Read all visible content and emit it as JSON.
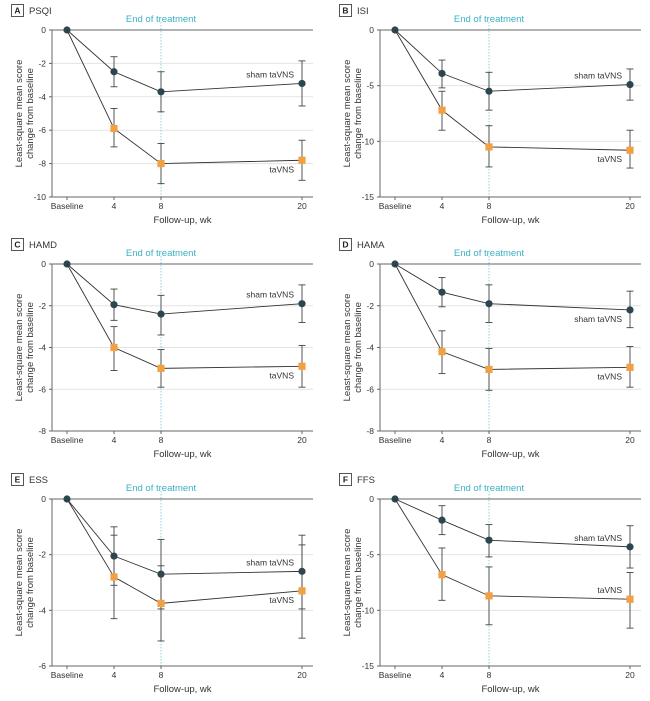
{
  "colors": {
    "sham": "#2c4650",
    "active": "#f2a142",
    "eot_line": "#6cc6d6",
    "eot_text": "#3ab0c4",
    "grid": "#e3e3e3",
    "axis": "#666666",
    "line": "#333333",
    "errorbar": "#444444"
  },
  "chart_data": [
    {
      "type": "line",
      "panel_letter": "A",
      "title": "PSQI",
      "annotation": "End of treatment",
      "annotation_x": 8,
      "xlabel": "Follow-up, wk",
      "ylabel_line1": "Least-square mean score",
      "ylabel_line2": "change from baseline",
      "x": [
        0,
        4,
        8,
        20
      ],
      "x_tick_labels": [
        "Baseline",
        "4",
        "8",
        "20"
      ],
      "xlim": [
        0,
        20
      ],
      "ylim": [
        -10,
        0
      ],
      "y_ticks": [
        0,
        -2,
        -4,
        -6,
        -8,
        -10
      ],
      "grid": true,
      "series": [
        {
          "name": "sham taVNS",
          "marker": "circle",
          "values": [
            0,
            -2.5,
            -3.7,
            -3.2
          ],
          "ci_upper": [
            0,
            -1.6,
            -2.5,
            -1.85
          ],
          "ci_lower": [
            0,
            -3.4,
            -4.9,
            -4.55
          ],
          "label_pos": "above"
        },
        {
          "name": "taVNS",
          "marker": "square",
          "values": [
            0,
            -5.9,
            -8.0,
            -7.8
          ],
          "ci_upper": [
            0,
            -4.7,
            -6.8,
            -6.6
          ],
          "ci_lower": [
            0,
            -7.0,
            -9.2,
            -9.0
          ],
          "label_pos": "below"
        }
      ]
    },
    {
      "type": "line",
      "panel_letter": "B",
      "title": "ISI",
      "annotation": "End of treatment",
      "annotation_x": 8,
      "xlabel": "Follow-up, wk",
      "ylabel_line1": "Least-square mean score",
      "ylabel_line2": "change from baseline",
      "x": [
        0,
        4,
        8,
        20
      ],
      "x_tick_labels": [
        "Baseline",
        "4",
        "8",
        "20"
      ],
      "xlim": [
        0,
        20
      ],
      "ylim": [
        -15,
        0
      ],
      "y_ticks": [
        0,
        -5,
        -10,
        -15
      ],
      "grid": true,
      "series": [
        {
          "name": "sham taVNS",
          "marker": "circle",
          "values": [
            0,
            -3.9,
            -5.5,
            -4.9
          ],
          "ci_upper": [
            0,
            -2.7,
            -3.8,
            -3.5
          ],
          "ci_lower": [
            0,
            -5.2,
            -7.2,
            -6.3
          ],
          "label_pos": "above"
        },
        {
          "name": "taVNS",
          "marker": "square",
          "values": [
            0,
            -7.2,
            -10.5,
            -10.8
          ],
          "ci_upper": [
            0,
            -5.5,
            -8.6,
            -9.0
          ],
          "ci_lower": [
            0,
            -9.0,
            -12.3,
            -12.4
          ],
          "label_pos": "below"
        }
      ]
    },
    {
      "type": "line",
      "panel_letter": "C",
      "title": "HAMD",
      "annotation": "End of treatment",
      "annotation_x": 8,
      "xlabel": "Follow-up, wk",
      "ylabel_line1": "Least-square mean score",
      "ylabel_line2": "change from baseline",
      "x": [
        0,
        4,
        8,
        20
      ],
      "x_tick_labels": [
        "Baseline",
        "4",
        "8",
        "20"
      ],
      "xlim": [
        0,
        20
      ],
      "ylim": [
        -8,
        0
      ],
      "y_ticks": [
        0,
        -2,
        -4,
        -6,
        -8
      ],
      "grid": true,
      "series": [
        {
          "name": "sham taVNS",
          "marker": "circle",
          "values": [
            0,
            -1.95,
            -2.4,
            -1.9
          ],
          "ci_upper": [
            0,
            -1.2,
            -1.5,
            -1.0
          ],
          "ci_lower": [
            0,
            -2.7,
            -3.4,
            -2.8
          ],
          "label_pos": "above"
        },
        {
          "name": "taVNS",
          "marker": "square",
          "values": [
            0,
            -4.0,
            -5.0,
            -4.9
          ],
          "ci_upper": [
            0,
            -3.0,
            -4.1,
            -3.9
          ],
          "ci_lower": [
            0,
            -5.1,
            -5.9,
            -5.9
          ],
          "label_pos": "below"
        }
      ]
    },
    {
      "type": "line",
      "panel_letter": "D",
      "title": "HAMA",
      "annotation": "End of treatment",
      "annotation_x": 8,
      "xlabel": "Follow-up, wk",
      "ylabel_line1": "Least-square mean score",
      "ylabel_line2": "change from baseline",
      "x": [
        0,
        4,
        8,
        20
      ],
      "x_tick_labels": [
        "Baseline",
        "4",
        "8",
        "20"
      ],
      "xlim": [
        0,
        20
      ],
      "ylim": [
        -8,
        0
      ],
      "y_ticks": [
        0,
        -2,
        -4,
        -6,
        -8
      ],
      "grid": true,
      "series": [
        {
          "name": "sham taVNS",
          "marker": "circle",
          "values": [
            0,
            -1.35,
            -1.9,
            -2.2
          ],
          "ci_upper": [
            0,
            -0.65,
            -1.0,
            -1.3
          ],
          "ci_lower": [
            0,
            -2.05,
            -2.8,
            -3.05
          ],
          "label_pos": "below"
        },
        {
          "name": "taVNS",
          "marker": "square",
          "values": [
            0,
            -4.2,
            -5.05,
            -4.95
          ],
          "ci_upper": [
            0,
            -3.2,
            -4.05,
            -3.95
          ],
          "ci_lower": [
            0,
            -5.25,
            -6.05,
            -5.9
          ],
          "label_pos": "below"
        }
      ]
    },
    {
      "type": "line",
      "panel_letter": "E",
      "title": "ESS",
      "annotation": "End of treatment",
      "annotation_x": 8,
      "xlabel": "Follow-up, wk",
      "ylabel_line1": "Least-square mean score",
      "ylabel_line2": "change from baseline",
      "x": [
        0,
        4,
        8,
        20
      ],
      "x_tick_labels": [
        "Baseline",
        "4",
        "8",
        "20"
      ],
      "xlim": [
        0,
        20
      ],
      "ylim": [
        -6,
        0
      ],
      "y_ticks": [
        0,
        -2,
        -4,
        -6
      ],
      "grid": true,
      "series": [
        {
          "name": "sham taVNS",
          "marker": "circle",
          "values": [
            0,
            -2.05,
            -2.7,
            -2.6
          ],
          "ci_upper": [
            0,
            -1.0,
            -1.45,
            -1.3
          ],
          "ci_lower": [
            0,
            -3.1,
            -3.95,
            -3.95
          ],
          "label_pos": "above"
        },
        {
          "name": "taVNS",
          "marker": "square",
          "values": [
            0,
            -2.8,
            -3.75,
            -3.3
          ],
          "ci_upper": [
            0,
            -1.3,
            -2.4,
            -1.65
          ],
          "ci_lower": [
            0,
            -4.3,
            -5.1,
            -5.0
          ],
          "label_pos": "below"
        }
      ]
    },
    {
      "type": "line",
      "panel_letter": "F",
      "title": "FFS",
      "annotation": "End of treatment",
      "annotation_x": 8,
      "xlabel": "Follow-up, wk",
      "ylabel_line1": "Least-square mean score",
      "ylabel_line2": "change from baseline",
      "x": [
        0,
        4,
        8,
        20
      ],
      "x_tick_labels": [
        "Baseline",
        "4",
        "8",
        "20"
      ],
      "xlim": [
        0,
        20
      ],
      "ylim": [
        -15,
        0
      ],
      "y_ticks": [
        0,
        -5,
        -10,
        -15
      ],
      "grid": true,
      "series": [
        {
          "name": "sham taVNS",
          "marker": "circle",
          "values": [
            0,
            -1.9,
            -3.7,
            -4.3
          ],
          "ci_upper": [
            0,
            -0.6,
            -2.3,
            -2.4
          ],
          "ci_lower": [
            0,
            -3.2,
            -5.2,
            -6.2
          ],
          "label_pos": "above"
        },
        {
          "name": "taVNS",
          "marker": "square",
          "values": [
            0,
            -6.8,
            -8.7,
            -9.0
          ],
          "ci_upper": [
            0,
            -4.4,
            -6.1,
            -6.6
          ],
          "ci_lower": [
            0,
            -9.1,
            -11.3,
            -11.6
          ],
          "label_pos": "above"
        }
      ]
    }
  ]
}
